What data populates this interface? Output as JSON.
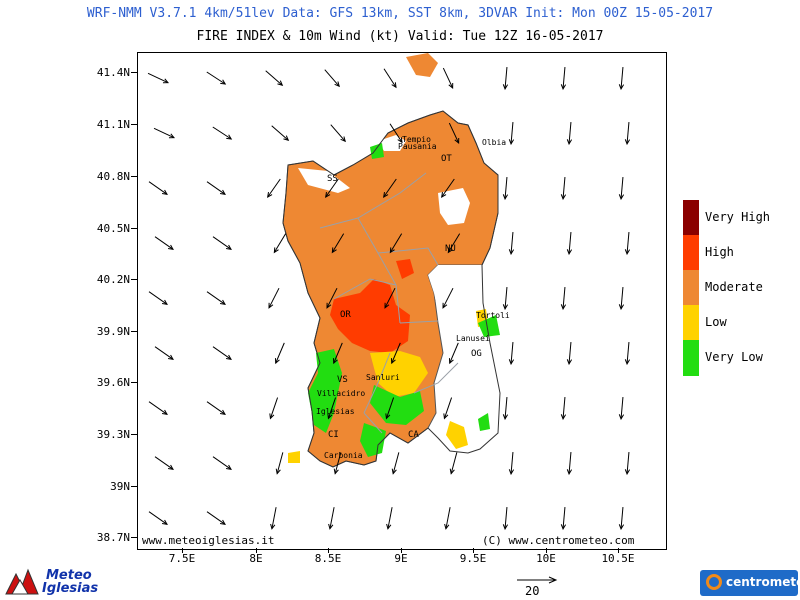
{
  "header": {
    "line1": "WRF-NMM V3.7.1 4km/51lev  Data: GFS 13km, SST 8km, 3DVAR  Init: Mon 00Z 15-05-2017",
    "line2": "FIRE INDEX & 10m Wind (kt)  Valid: Tue 12Z 16-05-2017"
  },
  "axes": {
    "lat_labels": [
      "41.4N",
      "41.1N",
      "40.8N",
      "40.5N",
      "40.2N",
      "39.9N",
      "39.6N",
      "39.3N",
      "39N",
      "38.7N"
    ],
    "lon_labels": [
      "7.5E",
      "8E",
      "8.5E",
      "9E",
      "9.5E",
      "10E",
      "10.5E"
    ]
  },
  "credits": {
    "left": "www.meteoiglesias.it",
    "right": "(C) www.centrometeo.com"
  },
  "legend": {
    "items": [
      {
        "label": "Very High",
        "color": "#8b0000"
      },
      {
        "label": "High",
        "color": "#ff3c00"
      },
      {
        "label": "Moderate",
        "color": "#ee8833"
      },
      {
        "label": "Low",
        "color": "#ffd200"
      },
      {
        "label": "Very Low",
        "color": "#22dd11"
      }
    ]
  },
  "wind_reference": {
    "value": "20"
  },
  "places": {
    "tempio": "Tempio",
    "pausania": "Pausania",
    "olbia": "Olbia",
    "ot": "OT",
    "ss": "SS",
    "nu": "NU",
    "or": "OR",
    "tortoli": "Tortoli",
    "lanusei": "Lanusei",
    "og": "OG",
    "sanluri": "Sanluri",
    "vs": "VS",
    "villacidro": "Villacidro",
    "iglesias": "Iglesias",
    "ci": "CI",
    "carbonia": "Carbonia",
    "ca": "CA"
  },
  "logos": {
    "left_line1": "Meteo",
    "left_line2": "Iglesias",
    "right": "centrometeo"
  }
}
